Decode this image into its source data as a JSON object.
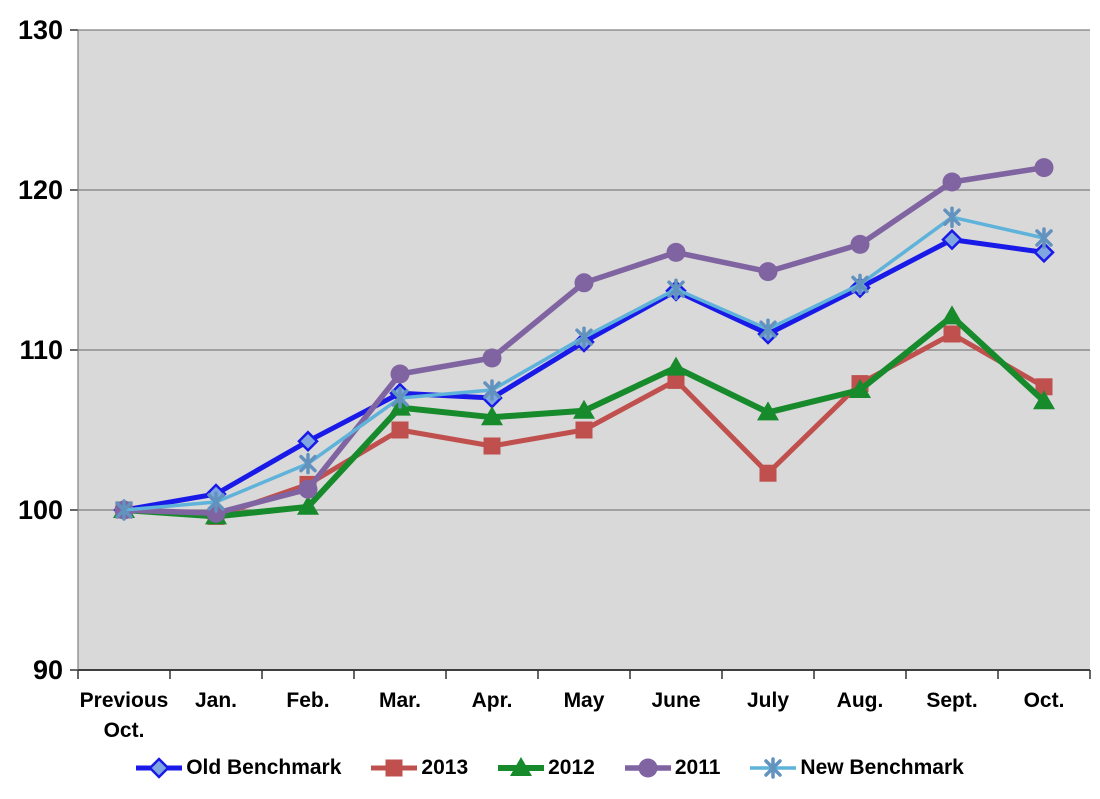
{
  "chart_data": {
    "type": "line",
    "title": "",
    "xlabel": "",
    "ylabel": "",
    "categories": [
      "Previous Oct.",
      "Jan.",
      "Feb.",
      "Mar.",
      "Apr.",
      "May",
      "June",
      "July",
      "Aug.",
      "Sept.",
      "Oct."
    ],
    "series": [
      {
        "name": "Old Benchmark",
        "marker": "diamond",
        "color": "#1a1ae8",
        "marker_fill": "#7fa6e0",
        "line_width": 5,
        "values": [
          100,
          101,
          104.3,
          107.3,
          107,
          110.5,
          113.7,
          111,
          113.9,
          116.9,
          116.1
        ]
      },
      {
        "name": "2013",
        "marker": "square",
        "color": "#c0504d",
        "marker_fill": "#c0504d",
        "line_width": 5,
        "values": [
          100,
          99.6,
          101.6,
          105,
          104,
          105,
          108.1,
          102.3,
          107.9,
          111,
          107.7
        ]
      },
      {
        "name": "2012",
        "marker": "triangle",
        "color": "#178a2c",
        "marker_fill": "#178a2c",
        "line_width": 6,
        "values": [
          100,
          99.6,
          100.2,
          106.4,
          105.8,
          106.2,
          108.9,
          106.1,
          107.5,
          112.1,
          106.8
        ]
      },
      {
        "name": "2011",
        "marker": "circle",
        "color": "#8064a2",
        "marker_fill": "#8064a2",
        "line_width": 5.5,
        "values": [
          100,
          99.8,
          101.3,
          108.5,
          109.5,
          114.2,
          116.1,
          114.9,
          116.6,
          120.5,
          121.4
        ]
      },
      {
        "name": "New Benchmark",
        "marker": "star",
        "color": "#5fb2d9",
        "marker_fill": "#6292be",
        "line_width": 3.5,
        "values": [
          100,
          100.5,
          102.9,
          107,
          107.5,
          110.8,
          113.8,
          111.3,
          114.1,
          118.3,
          117
        ]
      }
    ],
    "ylim": [
      90,
      130
    ],
    "yticks": [
      90,
      100,
      110,
      120,
      130
    ],
    "grid": true,
    "legend_position": "bottom",
    "colors": {
      "plot_background": "#d9d9d9",
      "grid_line": "#808080",
      "axis_line": "#3f3f3f",
      "tick_mark": "#333333",
      "label_text": "#000000"
    }
  }
}
